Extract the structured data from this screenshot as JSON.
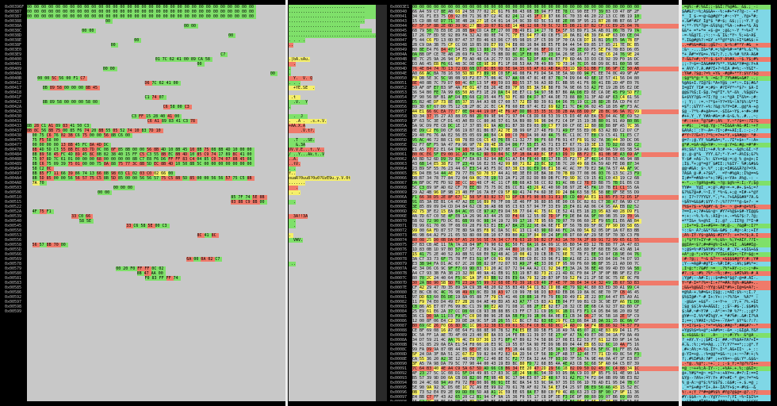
{
  "left_pane": {
    "addresses": [
      "0x00396F",
      "0x00387",
      "0x00387",
      "0x00388",
      "0x0038A",
      "0x0038C",
      "0x0038D",
      "0x0038E",
      "0x0038F",
      "0x003E0",
      "0x003E9",
      "0x00400",
      "0x00401",
      "0x00409",
      "0x0040A",
      "0x0040B",
      "0x00412",
      "0x00417",
      "0x00418",
      "0x0041F",
      "0x00423",
      "0x0042A",
      "0x00428",
      "0x00430",
      "0x00431",
      "0x00433",
      "0x00437",
      "0x00438",
      "0x00475",
      "0x00477",
      "0x00478",
      "0x00484",
      "0x00488",
      "0x00489",
      "0x00494",
      "0x00497",
      "0x004A4",
      "0x004A8",
      "0x00503",
      "0x00506",
      "0x00510",
      "0x00515",
      "0x00522",
      "0x0052A",
      "0x00539",
      "0x00540",
      "0x00545",
      "0x00550",
      "0x00553",
      "0x00556",
      "0x00558",
      "0x0055D",
      "0x00566",
      "0x00569",
      "0x00578",
      "0x00579",
      "0x00580",
      "0x00581",
      "0x00583",
      "0x00585",
      "0x00586",
      "0x00592",
      "0x00597",
      "0x00598",
      "0x00599"
    ],
    "hex_rows": [
      "00 00 00 00 00 00 00 00 00 00 00 00 00 00 00 00 00 00 00 00 00 00 00 00 00 00 00 00 00 00 00 00",
      "00 00 00 00 00 00 00 00 00 00 00 00 00 00 00 00 00 00 00 00 00 00 00 00 00 00 00 00 00 00 00 00",
      "00 00 00 00 00 00 00 00 00 00 00 00 00 00 00 00 00 00 00 00 00 00 00 00 00 00 00 00 00 00 00 00",
      "                              00                                                                ",
      "                                                            00              00                  ",
      "                     00                                                                 00      ",
      "                                                                             00                  ",
      "                                         00                                                      ",
      "                                00                                                                ",
      "",
      "                                                                          C7                     ",
      "                                                 01 7C 62 41 00  89 CA 58                        ",
      "                                                                 00                              ",
      "                             00                                        00                       ",
      "                                                                                             00  ",
      "    00                                       00              5C         56 00 F1          C7    ",
      "                                             D6 7C 62 41 00                                     ",
      "      8B 89 58 00 00 00 8B 45                                                                  ",
      "",
      "                                             C1 74 07                                          ",
      "      8B 89 58 00 00 00 58               00                                                     ",
      "                                                    C6         58 00 C3                         ",
      "                                                                                               ",
      "                                        C3             FF 15 28 40 41      00                   ",
      "                                              C6 A1 89 83 41                        C3 78         ",
      "8B                                       28 C1 A1 89 83 41 50 C3                                ",
      "8B 8C           56 8B 75    00          85 F6 74 20 8B 55 05 52 74 10 83 7D 10                  ",
      "  00             75 C6 76 02 3B C6 75    00 00    56 8B C6          00                              ",
      "  75 F5                  58                                 00                                   ",
      "  00 00 00 00                                                          13        8B 45 FC 8A 4D DC",
      "  8B 4D 5D C3 55 8B EC 83 7D 0C 08 0F 85 8B 00 00 56 8B 4D 10 8B 45 10 8B 75 08 8B 4D 10 00 00 ",
      "  8B 89 58 45 FC 4D 89 45 8C 8B 82 38 40 15 FF C5 C3 55 8B EC 8B 4D 10 85 C9 74 17 89 8C 41 00 ",
      "  75 07 8D 7C 61 01 00 00 00 68 00 00 00 00 8B C7 E8 F6 D6 FF FF 83 C4 04 85 C0 74 07 8B 45 08 ",
      "  8B C6 75 09 39 75 01 00 00 75 8A 88 75 77 3C 8B 5D EC 8B 4D 10 50 8B 5C 00 00 00 00 00 00 00 ",
      "  58 C2 0C                                                                                    ",
      "  8B 85 F7 11 66 39 86 74 13 66 8B 98 03 C1 02 03 C0 02 66 00                                 ",
      "  8B 5D 85 00 00 56 56 57 75 C5 8B 5D 85 00 00 56 56 57 75 C5 8B 5D 85 00 00 56 56 57 75 C5 8B ",
      "  7A 70                                                                                         ",
      "                                 00           00           00                                     ",
      "                           00        00                                                        ",
      "                                                                              85 7F 74 5E 8B      ",
      "                                                                              03 8B C9 8B 00      ",
      "",
      "  4F 75 F1                                                                                   ",
      "                 33 C0 66                                                                      ",
      "                    58                                        5E                                ",
      "                                      33 C6 58 5E 00 C3                                       ",
      "                                                                                              ",
      "                                                                 8C 41 8C                       ",
      "                                                                                              ",
      "  56 57 8B 70                                                                     00            ",
      "                                                                                              ",
      "",
      "                                                             6A 00 0A 02 C7                   ",
      "                                                                                              ",
      "                                  00 20 F0 FF         FF 0C 02                                   ",
      "                                          8B 47 AA 00                                           ",
      "                                             F0 83 FF FF 74                                     ",
      "",
      "",
      "",
      "",
      "",
      "",
      ""
    ],
    "ascii_rows": [
      "................................",
      "................................",
      "................................",
      "................................",
      "..............................",
      "...................................",
      "......................................",
      ". . . .",
      "..",
      "",
      " ",
      ".|bA.sAu.",
      "  .",
      ".",
      ".",
      "  Y.  V. Q",
      ". . .",
      "  +YE.SE  .",
      "",
      " .t  ",
      "  .V.  Y",
      ".",
      " ",
      "  .  J  ",
      ".  .A .  .s.+.V.",
      "+AA.X.A",
      "     .V.t?.",
      "    ",
      "  .T  ..SE.",
      "   &.3A",
      "UV.V.E...t..V..",
      "/ ..Y...Ak.t..V",
      "..A.",
      "..tV.",
      ". .",
      "f..",
      "ouaR?0uu8?0u0?UzE9u.y.V.0t",
      ".......",
      "   .",
      " .  .",
      " ",
      "  .",
      "",
      " ",
      "  3A!!3A",
      "  .",
      "  .",
      "   ",
      ". ",
      "  VWV.",
      "",
      "     ",
      "  ",
      "   ",
      " ..",
      "",
      "",
      " ",
      " ",
      "",
      " ",
      "",
      " "
    ]
  },
  "right_pane": {
    "addresses": [
      "0x0003E1",
      "0x00040",
      "0x00041",
      "0x00043",
      "0x00044",
      "0x00045",
      "0x00046",
      "0x00047",
      "0x00048",
      "0x00049",
      "0x0004A",
      "0x0004B",
      "0x0004C",
      "0x0004D",
      "0x0004E",
      "0x00050",
      "0x00051",
      "0x00052",
      "0x00053",
      "0x00054",
      "0x00055",
      "0x00056",
      "0x00057",
      "0x00058",
      "0x00059",
      "0x0005A",
      "0x0005B",
      "0x0005C",
      "0x0005D",
      "0x0005E",
      "0x00060",
      "0x00061",
      "0x00062",
      "0x00063",
      "0x00064",
      "0x00065",
      "0x00066",
      "0x00067",
      "0x00068",
      "0x00069",
      "0x0006A",
      "0x0006B",
      "0x0006C",
      "0x0006D",
      "0x0006E",
      "0x00070",
      "0x00071",
      "0x00072",
      "0x00073",
      "0x00074",
      "0x00075",
      "0x00076",
      "0x00077",
      "0x00078",
      "0x00079",
      "0x0007A",
      "0x0007B",
      "0x0007C",
      "0x0007D",
      "0x0007E",
      "0x00080",
      "0x00081",
      "0x00082",
      "0x00083",
      "0x00084",
      "0x00085",
      "0x00086",
      "0x00087",
      "0x00088",
      "0x00089",
      "0x0008A",
      "0x0008B",
      "0x0008C",
      "0x0008D",
      "0x0008E",
      "0x00090",
      "0x00091",
      "0x00092",
      "0x00093",
      "0x00094",
      "0x00095",
      "0x00096",
      "0x00097",
      "0x00098",
      "0x00099"
    ]
  },
  "colors": {
    "green": "#7fe06a",
    "red": "#f07a6a",
    "yellow": "#f5ef6a",
    "cyan": "#7fd7e6",
    "gray": "#c8c8c8",
    "black": "#000000"
  }
}
